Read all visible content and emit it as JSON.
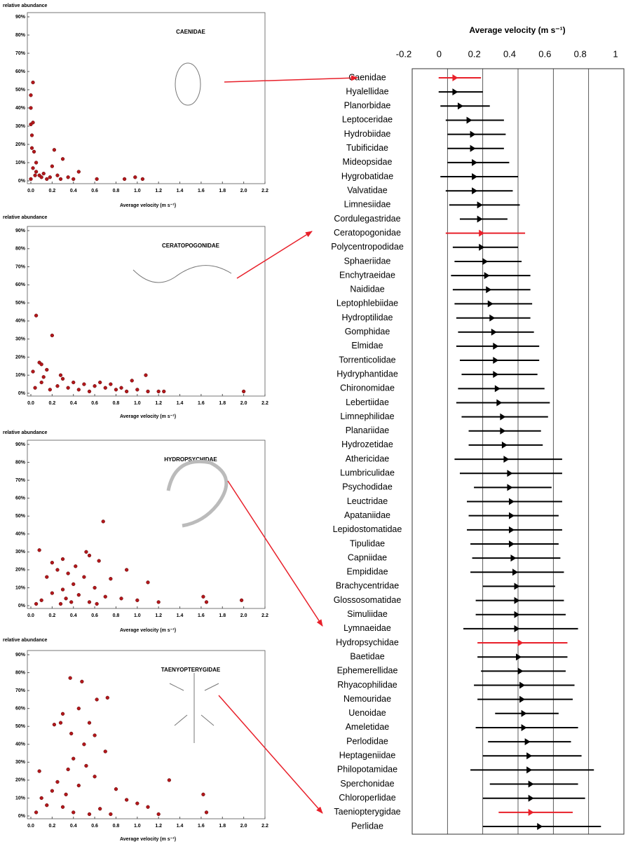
{
  "chart_data": [
    {
      "type": "range",
      "title": "Average velocity (m s⁻¹)",
      "categories": [
        "Caenidae",
        "Hyalellidae",
        "Planorbidae",
        "Leptoceridae",
        "Hydrobiidae",
        "Tubificidae",
        "Mideopsidae",
        "Hygrobatidae",
        "Valvatidae",
        "Limnesiidae",
        "Cordulegastridae",
        "Ceratopogonidae",
        "Polycentropodidae",
        "Sphaeriidae",
        "Enchytraeidae",
        "Naididae",
        "Leptophlebiidae",
        "Hydroptilidae",
        "Gomphidae",
        "Elmidae",
        "Torrenticolidae",
        "Hydryphantidae",
        "Chironomidae",
        "Lebertiidae",
        "Limnephilidae",
        "Planariidae",
        "Hydrozetidae",
        "Athericidae",
        "Lumbriculidae",
        "Psychodidae",
        "Leuctridae",
        "Apataniidae",
        "Lepidostomatidae",
        "Tipulidae",
        "Capniidae",
        "Empididae",
        "Brachycentridae",
        "Glossosomatidae",
        "Simuliidae",
        "Lymnaeidae",
        "Hydropsychidae",
        "Baetidae",
        "Ephemerellidae",
        "Rhyacophilidae",
        "Nemouridae",
        "Uenoidae",
        "Ameletidae",
        "Perlodidae",
        "Heptageniidae",
        "Philopotamidae",
        "Sperchonidae",
        "Chloroperlidae",
        "Taeniopterygidae",
        "Perlidae"
      ],
      "values": [
        0.06,
        0.06,
        0.09,
        0.14,
        0.16,
        0.16,
        0.17,
        0.17,
        0.17,
        0.2,
        0.2,
        0.21,
        0.21,
        0.23,
        0.24,
        0.25,
        0.26,
        0.27,
        0.28,
        0.29,
        0.29,
        0.29,
        0.3,
        0.31,
        0.33,
        0.33,
        0.34,
        0.35,
        0.37,
        0.37,
        0.38,
        0.38,
        0.38,
        0.38,
        0.39,
        0.4,
        0.41,
        0.41,
        0.41,
        0.41,
        0.43,
        0.42,
        0.43,
        0.44,
        0.44,
        0.45,
        0.45,
        0.47,
        0.48,
        0.48,
        0.49,
        0.49,
        0.49,
        0.54
      ],
      "low": [
        -0.05,
        -0.05,
        -0.04,
        -0.01,
        0.0,
        0.0,
        0.0,
        -0.04,
        -0.01,
        0.01,
        0.07,
        -0.01,
        0.03,
        0.04,
        0.02,
        0.03,
        0.04,
        0.05,
        0.06,
        0.05,
        0.07,
        0.08,
        0.06,
        0.05,
        0.08,
        0.12,
        0.12,
        0.04,
        0.07,
        0.15,
        0.11,
        0.12,
        0.11,
        0.13,
        0.14,
        0.13,
        0.2,
        0.16,
        0.16,
        0.09,
        0.17,
        0.17,
        0.19,
        0.15,
        0.17,
        0.27,
        0.16,
        0.23,
        0.2,
        0.13,
        0.24,
        0.2,
        0.29,
        0.2
      ],
      "high": [
        0.19,
        0.2,
        0.24,
        0.32,
        0.33,
        0.32,
        0.35,
        0.4,
        0.37,
        0.41,
        0.34,
        0.44,
        0.4,
        0.42,
        0.47,
        0.47,
        0.48,
        0.47,
        0.49,
        0.52,
        0.52,
        0.51,
        0.55,
        0.58,
        0.57,
        0.53,
        0.54,
        0.65,
        0.65,
        0.59,
        0.65,
        0.63,
        0.65,
        0.63,
        0.64,
        0.66,
        0.61,
        0.66,
        0.67,
        0.74,
        0.68,
        0.68,
        0.67,
        0.72,
        0.71,
        0.63,
        0.74,
        0.7,
        0.76,
        0.83,
        0.74,
        0.78,
        0.71,
        0.87
      ],
      "colors": [
        "#e8202a",
        "#000000",
        "#000000",
        "#000000",
        "#000000",
        "#000000",
        "#000000",
        "#000000",
        "#000000",
        "#000000",
        "#000000",
        "#e8202a",
        "#000000",
        "#000000",
        "#000000",
        "#000000",
        "#000000",
        "#000000",
        "#000000",
        "#000000",
        "#000000",
        "#000000",
        "#000000",
        "#000000",
        "#000000",
        "#000000",
        "#000000",
        "#000000",
        "#000000",
        "#000000",
        "#000000",
        "#000000",
        "#000000",
        "#000000",
        "#000000",
        "#000000",
        "#000000",
        "#000000",
        "#000000",
        "#000000",
        "#e8202a",
        "#000000",
        "#000000",
        "#000000",
        "#000000",
        "#000000",
        "#000000",
        "#000000",
        "#000000",
        "#000000",
        "#000000",
        "#000000",
        "#e8202a",
        "#000000"
      ],
      "xlim": [
        -0.2,
        1
      ],
      "xticks": [
        -0.2,
        0,
        0.2,
        0.4,
        0.6,
        0.8,
        1
      ],
      "grid": true
    },
    {
      "type": "scatter",
      "title": "CAENIDAE",
      "ylabel": "relative abundance",
      "xlabel": "Average velocity (m s⁻¹)",
      "color": "#b3171b",
      "x": [
        0.0,
        0.0,
        0.0,
        0.01,
        0.02,
        0.02,
        0.03,
        0.05,
        0.05,
        0.08,
        0.1,
        0.12,
        0.15,
        0.18,
        0.2,
        0.22,
        0.25,
        0.28,
        0.3,
        0.35,
        0.4,
        0.45,
        0.62,
        0.88,
        0.98,
        1.05,
        0.02,
        0.01,
        0.04,
        0.0
      ],
      "y": [
        47,
        40,
        31,
        18,
        54,
        32,
        16,
        10,
        5,
        3,
        2,
        4,
        1,
        2,
        8,
        17,
        3,
        1,
        12,
        2,
        1,
        5,
        1,
        1,
        2,
        1,
        7,
        25,
        3,
        1
      ],
      "xlim": [
        0,
        2.2
      ],
      "ylim": [
        0,
        90
      ],
      "xticks": [
        {
          "value": 0,
          "label": "0.0"
        },
        0.2,
        0.4,
        0.6,
        0.8,
        {
          "value": 1,
          "label": "1.0"
        },
        1.2,
        1.4,
        1.6,
        1.8,
        {
          "value": 2,
          "label": "2.0"
        },
        2.2
      ],
      "yticks": [
        {
          "value": 0,
          "label": "0%"
        },
        {
          "value": 10,
          "label": "10%"
        },
        {
          "value": 20,
          "label": "20%"
        },
        {
          "value": 30,
          "label": "30%"
        },
        {
          "value": 40,
          "label": "40%"
        },
        {
          "value": 50,
          "label": "50%"
        },
        {
          "value": 60,
          "label": "60%"
        },
        {
          "value": 70,
          "label": "70%"
        },
        {
          "value": 80,
          "label": "80%"
        },
        {
          "value": 90,
          "label": "90%"
        }
      ]
    },
    {
      "type": "scatter",
      "title": "CERATOPOGONIDAE",
      "ylabel": "relative abundance",
      "xlabel": "Average velocity (m s⁻¹)",
      "color": "#b3171b",
      "x": [
        0.05,
        0.2,
        0.08,
        0.1,
        0.15,
        1.08,
        0.95,
        2.0,
        0.3,
        0.4,
        0.5,
        0.6,
        0.7,
        0.8,
        0.9,
        1.0,
        1.1,
        1.2,
        0.02,
        0.1,
        0.25,
        0.35,
        0.45,
        0.55,
        0.65,
        0.12,
        0.28,
        0.04,
        0.18,
        0.75,
        0.85,
        1.25
      ],
      "y": [
        43,
        32,
        17,
        16,
        13,
        10,
        7,
        1,
        8,
        6,
        5,
        4,
        3,
        2,
        1,
        2,
        1,
        1,
        12,
        6,
        4,
        3,
        2,
        1,
        6,
        9,
        10,
        3,
        2,
        5,
        3,
        1
      ],
      "xlim": [
        0,
        2.2
      ],
      "ylim": [
        0,
        90
      ],
      "xticks": [
        {
          "value": 0,
          "label": "0.0"
        },
        0.2,
        0.4,
        0.6,
        0.8,
        {
          "value": 1,
          "label": "1.0"
        },
        1.2,
        1.4,
        1.6,
        1.8,
        {
          "value": 2,
          "label": "2.0"
        },
        2.2
      ],
      "yticks": [
        {
          "value": 0,
          "label": "0%"
        },
        {
          "value": 10,
          "label": "10%"
        },
        {
          "value": 20,
          "label": "20%"
        },
        {
          "value": 30,
          "label": "30%"
        },
        {
          "value": 40,
          "label": "40%"
        },
        {
          "value": 50,
          "label": "50%"
        },
        {
          "value": 60,
          "label": "60%"
        },
        {
          "value": 70,
          "label": "70%"
        },
        {
          "value": 80,
          "label": "80%"
        },
        {
          "value": 90,
          "label": "90%"
        }
      ]
    },
    {
      "type": "scatter",
      "title": "HYDROPSYCHIDAE",
      "ylabel": "relative abundance",
      "xlabel": "Average velocity (m s⁻¹)",
      "color": "#b3171b",
      "x": [
        0.68,
        0.08,
        0.52,
        0.55,
        0.3,
        0.64,
        0.2,
        0.42,
        0.25,
        0.35,
        0.9,
        1.1,
        0.15,
        0.5,
        0.75,
        0.4,
        0.6,
        0.3,
        0.2,
        0.45,
        0.7,
        0.85,
        1.0,
        1.2,
        1.62,
        1.65,
        1.98,
        0.1,
        0.33,
        0.38,
        0.55,
        0.28,
        0.62,
        0.05
      ],
      "y": [
        47,
        31,
        30,
        28,
        26,
        25,
        24,
        22,
        20,
        18,
        20,
        13,
        16,
        16,
        15,
        12,
        10,
        9,
        7,
        6,
        5,
        4,
        3,
        2,
        5,
        2,
        3,
        3,
        4,
        2,
        2,
        1,
        1,
        1
      ],
      "xlim": [
        0,
        2.2
      ],
      "ylim": [
        0,
        90
      ],
      "xticks": [
        {
          "value": 0,
          "label": "0.0"
        },
        0.2,
        0.4,
        0.6,
        0.8,
        {
          "value": 1,
          "label": "1.0"
        },
        1.2,
        1.4,
        1.6,
        1.8,
        {
          "value": 2,
          "label": "2.0"
        },
        2.2
      ],
      "yticks": [
        {
          "value": 0,
          "label": "0%"
        },
        {
          "value": 10,
          "label": "10%"
        },
        {
          "value": 20,
          "label": "20%"
        },
        {
          "value": 30,
          "label": "30%"
        },
        {
          "value": 40,
          "label": "40%"
        },
        {
          "value": 50,
          "label": "50%"
        },
        {
          "value": 60,
          "label": "60%"
        },
        {
          "value": 70,
          "label": "70%"
        },
        {
          "value": 80,
          "label": "80%"
        },
        {
          "value": 90,
          "label": "90%"
        }
      ]
    },
    {
      "type": "scatter",
      "title": "TAENYOPTERYGIDAE",
      "ylabel": "relative abundance",
      "xlabel": "Average velocity (m s⁻¹)",
      "color": "#b3171b",
      "x": [
        0.37,
        0.48,
        0.62,
        0.72,
        0.45,
        0.3,
        0.22,
        0.28,
        0.55,
        0.38,
        0.6,
        0.7,
        0.5,
        0.4,
        0.52,
        0.35,
        0.08,
        0.6,
        0.25,
        1.3,
        0.45,
        0.8,
        0.2,
        0.9,
        1.0,
        1.1,
        0.15,
        0.3,
        0.65,
        1.62,
        1.65,
        0.05,
        0.4,
        0.55,
        0.75,
        1.2,
        0.1,
        0.33
      ],
      "y": [
        77,
        75,
        65,
        66,
        60,
        57,
        51,
        52,
        52,
        46,
        45,
        36,
        40,
        32,
        28,
        26,
        25,
        22,
        19,
        20,
        17,
        15,
        14,
        9,
        7,
        5,
        6,
        5,
        4,
        12,
        2,
        2,
        2,
        1,
        1,
        1,
        10,
        12
      ],
      "xlim": [
        0,
        2.2
      ],
      "ylim": [
        0,
        90
      ],
      "xticks": [
        {
          "value": 0,
          "label": "0.0"
        },
        0.2,
        0.4,
        0.6,
        0.8,
        {
          "value": 1,
          "label": "1.0"
        },
        1.2,
        1.4,
        1.6,
        1.8,
        {
          "value": 2,
          "label": "2.0"
        },
        2.2
      ],
      "yticks": [
        {
          "value": 0,
          "label": "0%"
        },
        {
          "value": 10,
          "label": "10%"
        },
        {
          "value": 20,
          "label": "20%"
        },
        {
          "value": 30,
          "label": "30%"
        },
        {
          "value": 40,
          "label": "40%"
        },
        {
          "value": 50,
          "label": "50%"
        },
        {
          "value": 60,
          "label": "60%"
        },
        {
          "value": 70,
          "label": "70%"
        },
        {
          "value": 80,
          "label": "80%"
        },
        {
          "value": 90,
          "label": "90%"
        }
      ]
    }
  ]
}
